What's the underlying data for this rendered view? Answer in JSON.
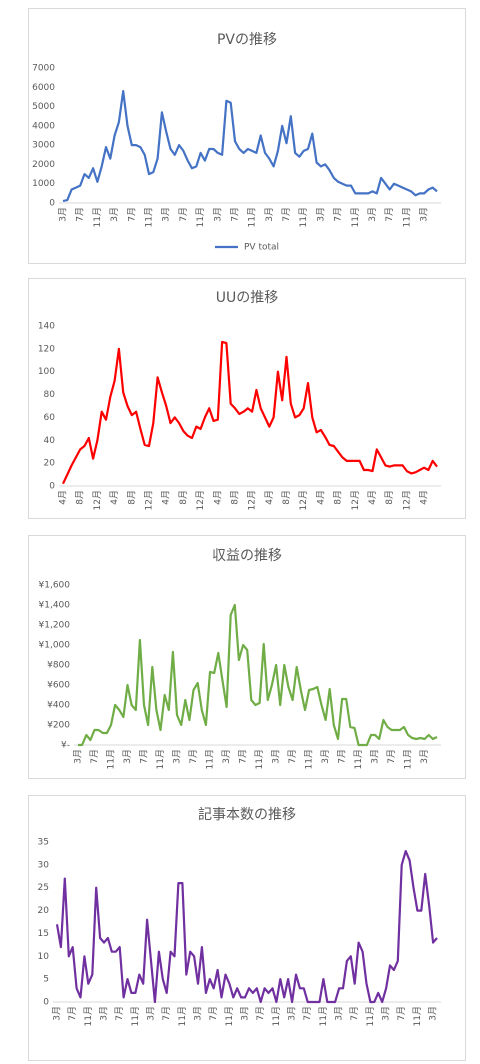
{
  "chart_data": [
    {
      "type": "line",
      "title": "PVの推移",
      "categories": [
        "3月",
        null,
        null,
        null,
        "7月",
        null,
        null,
        null,
        "11月",
        null,
        null,
        null,
        "3月",
        null,
        null,
        null,
        "7月",
        null,
        null,
        null,
        "11月",
        null,
        null,
        null,
        "3月",
        null,
        null,
        null,
        "7月",
        null,
        null,
        null,
        "11月",
        null,
        null,
        null,
        "3月",
        null,
        null,
        null,
        "7月",
        null,
        null,
        null,
        "11月",
        null,
        null,
        null,
        "3月",
        null,
        null,
        null,
        "7月",
        null,
        null,
        null,
        "11月",
        null,
        null,
        null,
        "3月",
        null,
        null,
        null,
        "7月",
        null,
        null,
        null,
        "11月",
        null,
        null,
        null,
        "3月",
        null,
        null,
        null,
        "7月",
        null,
        null,
        null,
        "11月",
        null,
        null,
        null,
        "3月",
        null,
        null,
        null
      ],
      "series": [
        {
          "name": "PV total",
          "color": "#4472c4",
          "values": [
            100,
            150,
            700,
            800,
            900,
            1500,
            1300,
            1800,
            1100,
            1900,
            2900,
            2300,
            3500,
            4200,
            5800,
            4000,
            3000,
            3000,
            2900,
            2500,
            1500,
            1600,
            2300,
            4700,
            3700,
            2800,
            2500,
            3000,
            2700,
            2200,
            1800,
            1900,
            2600,
            2200,
            2800,
            2800,
            2600,
            2500,
            5300,
            5200,
            3200,
            2800,
            2600,
            2800,
            2700,
            2600,
            3500,
            2600,
            2300,
            1900,
            2700,
            4000,
            3100,
            4500,
            2600,
            2400,
            2700,
            2800,
            3600,
            2100,
            1900,
            2000,
            1700,
            1300,
            1100,
            1000,
            900,
            900,
            500,
            500,
            500,
            500,
            600,
            500,
            1300,
            1000,
            700,
            1000,
            900,
            800,
            700,
            600,
            400,
            500,
            500,
            700,
            800,
            600
          ]
        }
      ],
      "ylim": [
        0,
        7000
      ],
      "yticks": [
        0,
        1000,
        2000,
        3000,
        4000,
        5000,
        6000,
        7000
      ],
      "grid": false,
      "legend": "bottom"
    },
    {
      "type": "line",
      "title": "UUの推移",
      "categories": [
        "4月",
        null,
        null,
        null,
        "8月",
        null,
        null,
        null,
        "12月",
        null,
        null,
        null,
        "4月",
        null,
        null,
        null,
        "8月",
        null,
        null,
        null,
        "12月",
        null,
        null,
        null,
        "4月",
        null,
        null,
        null,
        "8月",
        null,
        null,
        null,
        "12月",
        null,
        null,
        null,
        "4月",
        null,
        null,
        null,
        "8月",
        null,
        null,
        null,
        "12月",
        null,
        null,
        null,
        "4月",
        null,
        null,
        null,
        "8月",
        null,
        null,
        null,
        "12月",
        null,
        null,
        null,
        "4月",
        null,
        null,
        null,
        "8月",
        null,
        null,
        null,
        "12月",
        null,
        null,
        null,
        "4月",
        null,
        null,
        null,
        "8月",
        null,
        null,
        null,
        "12月",
        null,
        null,
        null,
        "4月",
        null,
        null,
        null
      ],
      "color": "#ff0000",
      "values": [
        2,
        10,
        18,
        25,
        32,
        35,
        42,
        24,
        40,
        65,
        58,
        78,
        92,
        120,
        82,
        70,
        62,
        65,
        50,
        36,
        35,
        55,
        95,
        82,
        70,
        55,
        60,
        55,
        48,
        44,
        42,
        52,
        50,
        60,
        68,
        57,
        58,
        126,
        125,
        72,
        68,
        63,
        65,
        68,
        65,
        84,
        68,
        60,
        52,
        60,
        100,
        75,
        113,
        72,
        60,
        62,
        68,
        90,
        60,
        47,
        49,
        43,
        36,
        35,
        30,
        25,
        22,
        22,
        22,
        22,
        14,
        14,
        13,
        32,
        25,
        18,
        17,
        18,
        18,
        18,
        13,
        11,
        12,
        14,
        16,
        14,
        22,
        17
      ],
      "ylim": [
        0,
        140
      ],
      "yticks": [
        0,
        20,
        40,
        60,
        80,
        100,
        120,
        140
      ],
      "grid": false
    },
    {
      "type": "line",
      "title": "収益の推移",
      "categories": [
        "3月",
        null,
        null,
        null,
        "7月",
        null,
        null,
        null,
        "11月",
        null,
        null,
        null,
        "3月",
        null,
        null,
        null,
        "7月",
        null,
        null,
        null,
        "11月",
        null,
        null,
        null,
        "3月",
        null,
        null,
        null,
        "7月",
        null,
        null,
        null,
        "11月",
        null,
        null,
        null,
        "3月",
        null,
        null,
        null,
        "7月",
        null,
        null,
        null,
        "11月",
        null,
        null,
        null,
        "3月",
        null,
        null,
        null,
        "7月",
        null,
        null,
        null,
        "11月",
        null,
        null,
        null,
        "3月",
        null,
        null,
        null,
        "7月",
        null,
        null,
        null,
        "11月",
        null,
        null,
        null,
        "3月",
        null,
        null,
        null,
        "7月",
        null,
        null,
        null,
        "11月",
        null,
        null,
        null,
        "3月",
        null,
        null,
        null
      ],
      "color": "#70ad47",
      "values": [
        0,
        0,
        100,
        50,
        150,
        150,
        120,
        120,
        200,
        400,
        350,
        280,
        600,
        400,
        350,
        1050,
        400,
        200,
        780,
        350,
        150,
        500,
        350,
        930,
        300,
        200,
        450,
        250,
        550,
        620,
        350,
        200,
        730,
        720,
        920,
        650,
        380,
        1300,
        1400,
        850,
        1000,
        950,
        450,
        400,
        420,
        1010,
        450,
        600,
        800,
        400,
        800,
        580,
        450,
        780,
        550,
        350,
        550,
        560,
        580,
        400,
        250,
        560,
        200,
        60,
        460,
        460,
        180,
        170,
        0,
        0,
        0,
        100,
        100,
        60,
        250,
        180,
        150,
        150,
        150,
        180,
        100,
        70,
        60,
        70,
        60,
        100,
        60,
        80
      ],
      "ylim": [
        0,
        1600
      ],
      "yticks": [
        {
          "value": 0,
          "label": "¥-"
        },
        {
          "value": 200,
          "label": "¥200"
        },
        {
          "value": 400,
          "label": "¥400"
        },
        {
          "value": 600,
          "label": "¥600"
        },
        {
          "value": 800,
          "label": "¥800"
        },
        {
          "value": 1000,
          "label": "¥1,000"
        },
        {
          "value": 1200,
          "label": "¥1,200"
        },
        {
          "value": 1400,
          "label": "¥1,400"
        },
        {
          "value": 1600,
          "label": "¥1,600"
        }
      ],
      "grid": false
    },
    {
      "type": "line",
      "title": "記事本数の推移",
      "categories": [
        "3月",
        null,
        null,
        null,
        "7月",
        null,
        null,
        null,
        "11月",
        null,
        null,
        null,
        "3月",
        null,
        null,
        null,
        "7月",
        null,
        null,
        null,
        "11月",
        null,
        null,
        null,
        "3月",
        null,
        null,
        null,
        "7月",
        null,
        null,
        null,
        "11月",
        null,
        null,
        null,
        "3月",
        null,
        null,
        null,
        "7月",
        null,
        null,
        null,
        "11月",
        null,
        null,
        null,
        "3月",
        null,
        null,
        null,
        "7月",
        null,
        null,
        null,
        "11月",
        null,
        null,
        null,
        "3月",
        null,
        null,
        null,
        "7月",
        null,
        null,
        null,
        "11月",
        null,
        null,
        null,
        "3月",
        null,
        null,
        null,
        "7月",
        null,
        null,
        null,
        "11月",
        null,
        null,
        null,
        "3月",
        null,
        null,
        null,
        "7月",
        null,
        null,
        null,
        "11月",
        null,
        null,
        null,
        "3月",
        null
      ],
      "color": "#7030a0",
      "values": [
        17,
        12,
        27,
        10,
        12,
        3,
        1,
        10,
        4,
        6,
        25,
        14,
        13,
        14,
        11,
        11,
        12,
        1,
        5,
        2,
        2,
        6,
        4,
        18,
        9,
        0,
        11,
        5,
        2,
        11,
        10,
        26,
        26,
        6,
        11,
        10,
        4,
        12,
        2,
        5,
        3,
        7,
        1,
        6,
        4,
        1,
        3,
        1,
        1,
        3,
        2,
        3,
        0,
        3,
        2,
        3,
        0,
        5,
        1,
        5,
        0,
        6,
        3,
        3,
        0,
        0,
        0,
        0,
        5,
        0,
        0,
        0,
        3,
        3,
        9,
        10,
        4,
        13,
        11,
        4,
        0,
        0,
        2,
        0,
        3,
        8,
        7,
        9,
        30,
        33,
        31,
        25,
        20,
        20,
        28,
        21,
        13,
        14
      ],
      "ylim": [
        0,
        35
      ],
      "yticks": [
        0,
        5,
        10,
        15,
        20,
        25,
        30,
        35
      ],
      "grid": false
    }
  ]
}
